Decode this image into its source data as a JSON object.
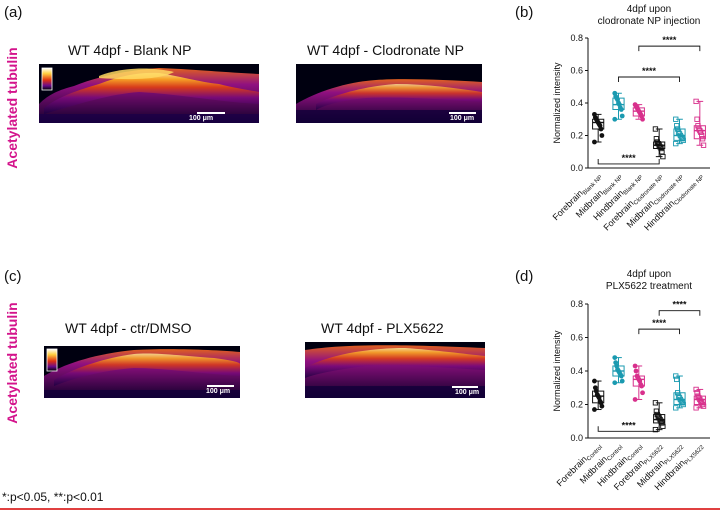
{
  "panels": [
    {
      "label": "(a)",
      "row_label": "Acetylated tubulin",
      "images": [
        {
          "title": "WT 4dpf - Blank NP",
          "scale": "100 μm"
        },
        {
          "title": "WT 4dpf - Clodronate NP",
          "scale": "100 μm"
        }
      ]
    },
    {
      "label": "(b)"
    },
    {
      "label": "(c)",
      "row_label": "Acetylated tubulin",
      "images": [
        {
          "title": "WT 4dpf - ctr/DMSO",
          "scale": "100 μm"
        },
        {
          "title": "WT 4dpf - PLX5622",
          "scale": "100 μm"
        }
      ]
    },
    {
      "label": "(d)"
    }
  ],
  "footnote": "*:p<0.05, **:p<0.01",
  "colors": {
    "black": "#111111",
    "teal": "#1a9ab0",
    "pink": "#d8308c",
    "label_magenta": "#d4148c"
  },
  "chart_data": [
    {
      "type": "box",
      "title": "4dpf upon clodronate NP injection",
      "ylabel": "Normalized intensity",
      "ylim": [
        0,
        0.8
      ],
      "yticks": [
        "0.0",
        "0.2",
        "0.4",
        "0.6",
        "0.8"
      ],
      "categories": [
        {
          "base": "Forebrain",
          "sub": "Blank NP",
          "color": "#111111",
          "filled": true
        },
        {
          "base": "Midbrain",
          "sub": "Blank NP",
          "color": "#1a9ab0",
          "filled": true
        },
        {
          "base": "Hindbrain",
          "sub": "Blank NP",
          "color": "#d8308c",
          "filled": true
        },
        {
          "base": "Forebrain",
          "sub": "Clodronate NP",
          "color": "#111111",
          "filled": false
        },
        {
          "base": "Midbrain",
          "sub": "Clodronate NP",
          "color": "#1a9ab0",
          "filled": false
        },
        {
          "base": "Hindbrain",
          "sub": "Clodronate NP",
          "color": "#d8308c",
          "filled": false
        }
      ],
      "boxes": [
        {
          "min": 0.16,
          "q1": 0.24,
          "median": 0.28,
          "q3": 0.3,
          "max": 0.33
        },
        {
          "min": 0.3,
          "q1": 0.36,
          "median": 0.39,
          "q3": 0.43,
          "max": 0.46
        },
        {
          "min": 0.3,
          "q1": 0.32,
          "median": 0.35,
          "q3": 0.37,
          "max": 0.39
        },
        {
          "min": 0.07,
          "q1": 0.12,
          "median": 0.14,
          "q3": 0.16,
          "max": 0.24
        },
        {
          "min": 0.15,
          "q1": 0.17,
          "median": 0.2,
          "q3": 0.24,
          "max": 0.3
        },
        {
          "min": 0.14,
          "q1": 0.18,
          "median": 0.23,
          "q3": 0.26,
          "max": 0.41
        }
      ],
      "points": [
        [
          0.33,
          0.31,
          0.3,
          0.29,
          0.28,
          0.27,
          0.26,
          0.24,
          0.2,
          0.16
        ],
        [
          0.46,
          0.44,
          0.43,
          0.42,
          0.4,
          0.39,
          0.37,
          0.36,
          0.32,
          0.3
        ],
        [
          0.39,
          0.38,
          0.37,
          0.36,
          0.35,
          0.34,
          0.33,
          0.32,
          0.3
        ],
        [
          0.24,
          0.18,
          0.16,
          0.15,
          0.14,
          0.13,
          0.12,
          0.1,
          0.07
        ],
        [
          0.3,
          0.26,
          0.24,
          0.22,
          0.21,
          0.2,
          0.19,
          0.18,
          0.17,
          0.15
        ],
        [
          0.41,
          0.3,
          0.26,
          0.24,
          0.23,
          0.22,
          0.2,
          0.18,
          0.14
        ]
      ],
      "significance": [
        {
          "from": 1,
          "to": 4,
          "label": "****",
          "y": 0.56,
          "side": "top"
        },
        {
          "from": 2,
          "to": 5,
          "label": "****",
          "y": 0.75,
          "side": "top"
        },
        {
          "from": 0,
          "to": 3,
          "label": "****",
          "y": 0.025,
          "side": "bottom"
        }
      ]
    },
    {
      "type": "box",
      "title": "4dpf upon PLX5622 treatment",
      "ylabel": "Normalized intensity",
      "ylim": [
        0,
        0.8
      ],
      "yticks": [
        "0.0",
        "0.2",
        "0.4",
        "0.6",
        "0.8"
      ],
      "categories": [
        {
          "base": "Forebrain",
          "sub": "Control",
          "color": "#111111",
          "filled": true
        },
        {
          "base": "Midbrain",
          "sub": "Control",
          "color": "#1a9ab0",
          "filled": true
        },
        {
          "base": "Hindbrain",
          "sub": "Control",
          "color": "#d8308c",
          "filled": true
        },
        {
          "base": "Forebrain",
          "sub": "PLX5622",
          "color": "#111111",
          "filled": false
        },
        {
          "base": "Midbrain",
          "sub": "PLX5622",
          "color": "#1a9ab0",
          "filled": false
        },
        {
          "base": "Hindbrain",
          "sub": "PLX5622",
          "color": "#d8308c",
          "filled": false
        }
      ],
      "boxes": [
        {
          "min": 0.17,
          "q1": 0.21,
          "median": 0.25,
          "q3": 0.28,
          "max": 0.34
        },
        {
          "min": 0.33,
          "q1": 0.37,
          "median": 0.4,
          "q3": 0.43,
          "max": 0.48
        },
        {
          "min": 0.23,
          "q1": 0.31,
          "median": 0.35,
          "q3": 0.37,
          "max": 0.43
        },
        {
          "min": 0.05,
          "q1": 0.09,
          "median": 0.11,
          "q3": 0.14,
          "max": 0.21
        },
        {
          "min": 0.18,
          "q1": 0.2,
          "median": 0.23,
          "q3": 0.27,
          "max": 0.37
        },
        {
          "min": 0.18,
          "q1": 0.2,
          "median": 0.23,
          "q3": 0.25,
          "max": 0.29
        }
      ],
      "points": [
        [
          0.34,
          0.3,
          0.28,
          0.26,
          0.25,
          0.24,
          0.22,
          0.21,
          0.19,
          0.17
        ],
        [
          0.48,
          0.45,
          0.43,
          0.41,
          0.4,
          0.39,
          0.38,
          0.37,
          0.34,
          0.33
        ],
        [
          0.43,
          0.4,
          0.37,
          0.36,
          0.35,
          0.34,
          0.32,
          0.31,
          0.27,
          0.23
        ],
        [
          0.21,
          0.16,
          0.14,
          0.13,
          0.12,
          0.11,
          0.1,
          0.09,
          0.07,
          0.05
        ],
        [
          0.37,
          0.35,
          0.27,
          0.25,
          0.24,
          0.23,
          0.22,
          0.21,
          0.2,
          0.18
        ],
        [
          0.29,
          0.27,
          0.25,
          0.24,
          0.23,
          0.22,
          0.21,
          0.2,
          0.19,
          0.18
        ]
      ],
      "significance": [
        {
          "from": 2,
          "to": 4,
          "label": "****",
          "y": 0.65,
          "side": "top"
        },
        {
          "from": 3,
          "to": 5,
          "label": "****",
          "y": 0.76,
          "side": "top"
        },
        {
          "from": 0,
          "to": 3,
          "label": "****",
          "y": 0.04,
          "side": "bottom"
        }
      ]
    }
  ]
}
